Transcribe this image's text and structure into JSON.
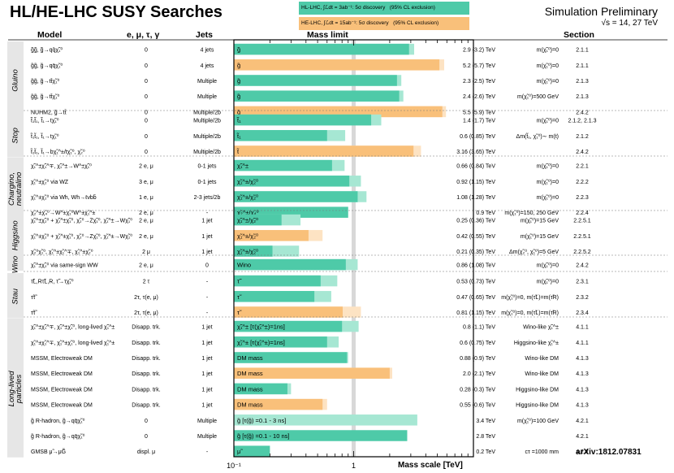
{
  "page": {
    "title": "HL/HE-LHC SUSY Searches",
    "legend_hl": "HL-LHC, ∫ℒdt = 3ab⁻¹: 5σ discovery",
    "legend_hl_note": "(95% CL exclusion)",
    "legend_he": "HE-LHC, ∫ℒdt = 15ab⁻¹: 5σ discovery",
    "legend_he_note": "(95% CL exclusion)",
    "sim_prelim": "Simulation Preliminary",
    "energy": "√s = 14, 27 TeV",
    "arxiv": "arXiv:1812.07831",
    "headers": {
      "model": "Model",
      "leptons": "e, μ, τ, γ",
      "jets": "Jets",
      "mass_limit": "Mass limit",
      "section": "Section"
    }
  },
  "colors": {
    "hl_discovery": "#4ecaa8",
    "hl_exclusion": "#a6e7d3",
    "he_discovery": "#f9c07a",
    "he_exclusion": "#fde3c3",
    "group_bg": "#e6e6e6",
    "ref_line": "#d8d8d8"
  },
  "chart_data": {
    "type": "bar",
    "orientation": "horizontal",
    "xscale": "log",
    "xlim": [
      0.1,
      10
    ],
    "xlabel": "Mass scale [TeV]",
    "xticklabels": [
      "10⁻¹",
      "1"
    ],
    "groups": [
      {
        "name": "Gluino",
        "rows": [
          {
            "model": "g̃g̃, g̃→qq̄χ̃₁⁰",
            "leptons": "0",
            "jets": "4 jets",
            "collider": "HL",
            "particle": "g̃",
            "discovery": 2.9,
            "exclusion": 3.2,
            "result": "2.9 (3.2) TeV",
            "condition": "m(χ̃₁⁰)=0",
            "section": "2.1.1"
          },
          {
            "model": "g̃g̃, g̃→qq̄χ̃₁⁰",
            "leptons": "0",
            "jets": "4 jets",
            "collider": "HE",
            "particle": "g̃",
            "discovery": 5.2,
            "exclusion": 5.7,
            "result": "5.2 (5.7) TeV",
            "condition": "m(χ̃₁⁰)=0",
            "section": "2.1.1"
          },
          {
            "model": "g̃g̃, g̃→tt̄χ̃₁⁰",
            "leptons": "0",
            "jets": "Multiple",
            "collider": "HL",
            "particle": "g̃",
            "discovery": 2.3,
            "exclusion": 2.5,
            "result": "2.3 (2.5) TeV",
            "condition": "m(χ̃₁⁰)=0",
            "section": "2.1.3"
          },
          {
            "model": "g̃g̃, g̃→tt̄χ̃₁⁰",
            "leptons": "0",
            "jets": "Multiple",
            "collider": "HL",
            "particle": "g̃",
            "discovery": 2.4,
            "exclusion": 2.6,
            "result": "2.4 (2.6) TeV",
            "condition": "m(χ̃₁⁰)=500 GeV",
            "section": "2.1.3"
          },
          {
            "model": "NUHM2, g̃→tt̄",
            "leptons": "0",
            "jets": "Multiple/2b",
            "collider": "HE",
            "particle": "g̃",
            "discovery": 5.5,
            "exclusion": 5.9,
            "result": "5.5 (5.9) TeV",
            "condition": "",
            "section": "2.4.2"
          }
        ]
      },
      {
        "name": "Stop",
        "rows": [
          {
            "model": "t̃₁t̃₁, t̃₁→tχ̃₁⁰",
            "leptons": "0",
            "jets": "Multiple/2b",
            "collider": "HL",
            "particle": "t̃₁",
            "discovery": 1.4,
            "exclusion": 1.7,
            "result": "1.4 (1.7) TeV",
            "condition": "m(χ̃₁⁰)=0",
            "section": "2.1.2, 2.1.3"
          },
          {
            "model": "t̃₁t̃₁, t̃₁→tχ̃₁⁰",
            "leptons": "0",
            "jets": "Multiple/2b",
            "collider": "HL",
            "particle": "t̃₁",
            "discovery": 0.6,
            "exclusion": 0.85,
            "result": "0.6 (0.85) TeV",
            "condition": "Δm(t̃₁, χ̃₁⁰)∼ m(t)",
            "section": "2.1.2"
          },
          {
            "model": "t̃₁t̃₁, t̃₁→bχ̃₁^±/tχ̃₁⁰, χ̃₂⁰",
            "leptons": "0",
            "jets": "Multiple/2b",
            "collider": "HE",
            "particle": "t̃",
            "discovery": 3.16,
            "exclusion": 3.65,
            "result": "3.16 (3.65) TeV",
            "condition": "",
            "section": "2.4.2"
          }
        ]
      },
      {
        "name": "Chargino, neutralino",
        "rows": [
          {
            "model": "χ̃₁^±χ̃₁^∓, χ̃₁^±→W^±χ̃₁⁰",
            "leptons": "2 e, μ",
            "jets": "0-1 jets",
            "collider": "HL",
            "particle": "χ̃₁^±",
            "discovery": 0.66,
            "exclusion": 0.84,
            "result": "0.66 (0.84) TeV",
            "condition": "m(χ̃₁⁰)=0",
            "section": "2.2.1"
          },
          {
            "model": "χ̃₁^±χ̃₂⁰ via WZ",
            "leptons": "3 e, μ",
            "jets": "0-1 jets",
            "collider": "HL",
            "particle": "χ̃₁^±/χ̃₂⁰",
            "discovery": 0.92,
            "exclusion": 1.15,
            "result": "0.92 (1.15) TeV",
            "condition": "m(χ̃₁⁰)=0",
            "section": "2.2.2"
          },
          {
            "model": "χ̃₁^±χ̃₂⁰ via Wh, Wh→ℓνbb̄",
            "leptons": "1 e, μ",
            "jets": "2-3 jets/2b",
            "collider": "HL",
            "particle": "χ̃₁^±/χ̃₂⁰",
            "discovery": 1.08,
            "exclusion": 1.28,
            "result": "1.08 (1.28) TeV",
            "condition": "m(χ̃₁⁰)=0",
            "section": "2.2.3"
          },
          {
            "model": "χ̃₂^±χ̃₄⁰→W^±χ̃₁⁰W^±χ̃₁^±",
            "leptons": "2 e, μ",
            "jets": "-",
            "collider": "HL",
            "particle": "χ̃₂^±/χ̃₄⁰",
            "discovery": 0.9,
            "exclusion": null,
            "result": "0.9 TeV",
            "condition": "m(χ̃₁⁰)=150, 250 GeV",
            "section": "2.2.4"
          }
        ]
      },
      {
        "name": "Higgsino",
        "rows": [
          {
            "model": "χ̃₁^±χ̃₂⁰ + χ̃₁^±χ̃₁⁰, χ̃₂⁰→Zχ̃₁⁰, χ̃₁^±→Wχ̃₁⁰",
            "leptons": "2 e, μ",
            "jets": "1 jet",
            "collider": "HL",
            "particle": "χ̃₁^±/χ̃₂⁰",
            "discovery": 0.25,
            "exclusion": 0.36,
            "result": "0.25 (0.36) TeV",
            "condition": "m(χ̃₁⁰)=15 GeV",
            "section": "2.2.5.1"
          },
          {
            "model": "χ̃₁^±χ̃₂⁰ + χ̃₁^±χ̃₁⁰, χ̃₂⁰→Zχ̃₁⁰, χ̃₁^±→Wχ̃₁⁰",
            "leptons": "2 e, μ",
            "jets": "1 jet",
            "collider": "HE",
            "particle": "χ̃₁^±/χ̃₂⁰",
            "discovery": 0.42,
            "exclusion": 0.55,
            "result": "0.42 (0.55) TeV",
            "condition": "m(χ̃₁⁰)=15 GeV",
            "section": "2.2.5.1"
          },
          {
            "model": "χ̃₂⁰χ̃₁⁰, χ̃₁^±χ̃₁^∓, χ̃₁^±χ̃₂⁰",
            "leptons": "2 μ",
            "jets": "1 jet",
            "collider": "HL",
            "particle": "χ̃₁^±/χ̃₂⁰",
            "discovery": 0.21,
            "exclusion": 0.35,
            "result": "0.21 (0.35) TeV",
            "condition": "Δm(χ̃₂⁰, χ̃₁⁰)=5 GeV",
            "section": "2.2.5.2"
          }
        ]
      },
      {
        "name": "Wino",
        "rows": [
          {
            "model": "χ̃₁^±χ̃₂⁰ via same-sign WW",
            "leptons": "2 e, μ",
            "jets": "0",
            "collider": "HL",
            "particle": "Wino",
            "discovery": 0.86,
            "exclusion": 1.08,
            "result": "0.86 (1.08) TeV",
            "condition": "m(χ̃₁⁰)=0",
            "section": "2.4.2"
          }
        ]
      },
      {
        "name": "Stau",
        "rows": [
          {
            "model": "τ̃L,Rτ̃L,R, τ̃→τχ̃₁⁰",
            "leptons": "2 τ",
            "jets": "-",
            "collider": "HL",
            "particle": "τ̃",
            "discovery": 0.53,
            "exclusion": 0.73,
            "result": "0.53 (0.73) TeV",
            "condition": "m(χ̃₁⁰)=0",
            "section": "2.3.1"
          },
          {
            "model": "τ̃τ̃",
            "leptons": "2τ, τ(e, μ)",
            "jets": "-",
            "collider": "HL",
            "particle": "τ̃",
            "discovery": 0.47,
            "exclusion": 0.65,
            "result": "0.47 (0.65) TeV",
            "condition": "m(χ̃₁⁰)=0, m(τ̃L)=m(τ̃R)",
            "section": "2.3.2"
          },
          {
            "model": "τ̃τ̃",
            "leptons": "2τ, τ(e, μ)",
            "jets": "-",
            "collider": "HE",
            "particle": "τ̃",
            "discovery": 0.81,
            "exclusion": 1.15,
            "result": "0.81 (1.15) TeV",
            "condition": "m(χ̃₁⁰)=0, m(τ̃L)=m(τ̃R)",
            "section": "2.3.4"
          }
        ]
      },
      {
        "name": "Long-lived particles",
        "rows": [
          {
            "model": "χ̃₁^±χ̃₁^∓, χ̃₁^±χ̃₁⁰, long-lived χ̃₁^±",
            "leptons": "Disapp. trk.",
            "jets": "1 jet",
            "collider": "HL",
            "particle": "χ̃₁^±",
            "bar_note": "[τ(χ̃₁^±)=1ns]",
            "discovery": 0.8,
            "exclusion": 1.1,
            "result": "0.8 (1.1) TeV",
            "condition": "Wino-like χ̃₁^±",
            "section": "4.1.1"
          },
          {
            "model": "χ̃₁^±χ̃₁^∓, χ̃₁^±χ̃₁⁰, long-lived χ̃₁^±",
            "leptons": "Disapp. trk.",
            "jets": "1 jet",
            "collider": "HL",
            "particle": "χ̃₁^±",
            "bar_note": "[τ(χ̃₁^±)=1ns]",
            "discovery": 0.6,
            "exclusion": 0.75,
            "result": "0.6 (0.75) TeV",
            "condition": "Higgsino-like χ̃₁^±",
            "section": "4.1.1"
          },
          {
            "model": "MSSM, Electroweak DM",
            "leptons": "Disapp. trk.",
            "jets": "1 jet",
            "collider": "HL",
            "particle": "DM mass",
            "discovery": 0.88,
            "exclusion": 0.9,
            "result": "0.88 (0.9) TeV",
            "condition": "Wino-like DM",
            "section": "4.1.3"
          },
          {
            "model": "MSSM, Electroweak DM",
            "leptons": "Disapp. trk.",
            "jets": "1 jet",
            "collider": "HE",
            "particle": "DM mass",
            "discovery": 2.0,
            "exclusion": 2.1,
            "result": "2.0 (2.1) TeV",
            "condition": "Wino-like DM",
            "section": "4.1.3"
          },
          {
            "model": "MSSM, Electroweak DM",
            "leptons": "Disapp. trk.",
            "jets": "1 jet",
            "collider": "HL",
            "particle": "DM mass",
            "discovery": 0.28,
            "exclusion": 0.3,
            "result": "0.28 (0.3) TeV",
            "condition": "Higgsino-like DM",
            "section": "4.1.3"
          },
          {
            "model": "MSSM, Electroweak DM",
            "leptons": "Disapp. trk.",
            "jets": "1 jet",
            "collider": "HE",
            "particle": "DM mass",
            "discovery": 0.55,
            "exclusion": 0.6,
            "result": "0.55 (0.6) TeV",
            "condition": "Higgsino-like DM",
            "section": "4.1.3"
          },
          {
            "model": "g̃ R-hadron, g̃→qq̄χ̃₁⁰",
            "leptons": "0",
            "jets": "Multiple",
            "collider": "HL",
            "style": "exclusion",
            "particle": "g̃",
            "bar_note": "[τ(g̃) =0.1 - 3 ns]",
            "discovery": 3.4,
            "exclusion": null,
            "result": "3.4 TeV",
            "condition": "m(χ̃₁⁰)=100 GeV",
            "section": "4.2.1"
          },
          {
            "model": "g̃ R-hadron, g̃→qq̄χ̃₁⁰",
            "leptons": "0",
            "jets": "Multiple",
            "collider": "HL",
            "particle": "g̃",
            "bar_note": "[τ(g̃) =0.1 - 10 ns]",
            "discovery": 2.8,
            "exclusion": null,
            "result": "2.8 TeV",
            "condition": "",
            "section": "4.2.1"
          },
          {
            "model": "GMSB μ̃→μG̃",
            "leptons": "displ. μ",
            "jets": "-",
            "collider": "HL",
            "particle": "μ̃",
            "discovery": 0.2,
            "exclusion": null,
            "result": "0.2 TeV",
            "condition": "cτ =1000 mm",
            "section": "4.2.2"
          }
        ]
      }
    ]
  }
}
